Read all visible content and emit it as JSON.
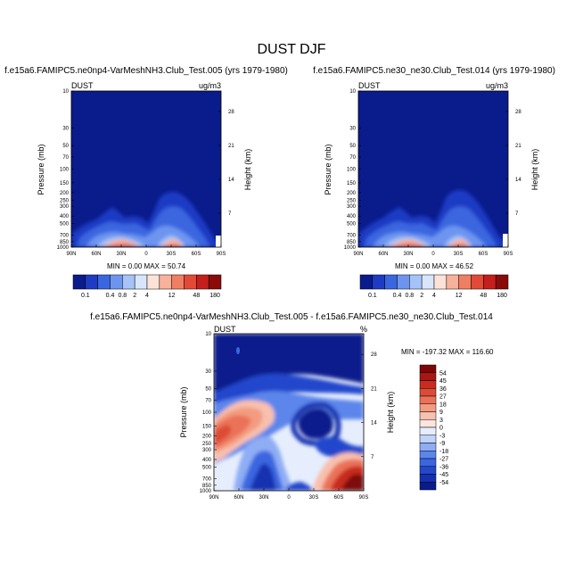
{
  "title": "DUST DJF",
  "colors": {
    "abs_scale": [
      "#0a1b8c",
      "#1f3bc4",
      "#3a66e0",
      "#6d95f0",
      "#a6c3f8",
      "#d8e6fc",
      "#fde3d7",
      "#f8b19a",
      "#f07e62",
      "#e24a36",
      "#c41f1c",
      "#8b0a0a"
    ],
    "diff_scale": [
      "#0a1b8c",
      "#1530b0",
      "#2447cc",
      "#3a66e0",
      "#5b86ec",
      "#8fadf4",
      "#c0d3fa",
      "#e6eefd",
      "#fbe5de",
      "#f8c0ae",
      "#f39b80",
      "#ea7258",
      "#dc4b36",
      "#c82c1f",
      "#a81712",
      "#7d0707"
    ]
  },
  "panels": [
    {
      "title": "f.e15a6.FAMIPC5.ne0np4-VarMeshNH3.Club_Test.005 (yrs 1979-1980)",
      "left_label": "DUST",
      "right_label": "ug/m3",
      "minmax": "MIN =   0.00  MAX =  50.74"
    },
    {
      "title": "f.e15a6.FAMIPC5.ne30_ne30.Club_Test.014 (yrs 1979-1980)",
      "left_label": "DUST",
      "right_label": "ug/m3",
      "minmax": "MIN =   0.00  MAX =  46.52"
    },
    {
      "title": "f.e15a6.FAMIPC5.ne0np4-VarMeshNH3.Club_Test.005 - f.e15a6.FAMIPC5.ne30_ne30.Club_Test.014",
      "left_label": "DUST",
      "right_label": "%",
      "minmax": "MIN = -197.32  MAX = 116.60"
    }
  ],
  "axes": {
    "ylabel": "Pressure (mb)",
    "ylabel_right": "Height (km)",
    "pressure_ticks": [
      "10",
      "30",
      "50",
      "70",
      "100",
      "150",
      "200",
      "250",
      "300",
      "400",
      "500",
      "700",
      "850",
      "1000"
    ],
    "height_ticks": [
      "28",
      "21",
      "14",
      "7"
    ],
    "lat_ticks": [
      "90N",
      "60N",
      "30N",
      "0",
      "30S",
      "60S",
      "90S"
    ]
  },
  "colorbar_abs": {
    "labels": [
      "0.1",
      "0.4",
      "0.8",
      "2",
      "4",
      "12",
      "48",
      "180"
    ]
  },
  "colorbar_diff": {
    "labels": [
      "54",
      "45",
      "36",
      "27",
      "18",
      "9",
      "3",
      "0",
      "-3",
      "-9",
      "-18",
      "-27",
      "-36",
      "-45",
      "-54"
    ]
  },
  "chart_data": [
    {
      "type": "heatmap",
      "title": "f.e15a6.FAMIPC5.ne0np4-VarMeshNH3.Club_Test.005 (yrs 1979-1980)",
      "variable": "DUST",
      "units": "ug/m3",
      "ylabel": "Pressure (mb)",
      "ylabel_right": "Height (km)",
      "x_ticks": [
        "90N",
        "60N",
        "30N",
        "0",
        "30S",
        "60S",
        "90S"
      ],
      "y_ticks": [
        10,
        30,
        50,
        70,
        100,
        150,
        200,
        250,
        300,
        400,
        500,
        700,
        850,
        1000
      ],
      "y_log": true,
      "y_reversed": true,
      "levels": [
        0.1,
        0.4,
        0.8,
        2,
        4,
        12,
        48,
        180
      ],
      "min": 0.0,
      "max": 50.74
    },
    {
      "type": "heatmap",
      "title": "f.e15a6.FAMIPC5.ne30_ne30.Club_Test.014 (yrs 1979-1980)",
      "variable": "DUST",
      "units": "ug/m3",
      "ylabel": "Pressure (mb)",
      "ylabel_right": "Height (km)",
      "x_ticks": [
        "90N",
        "60N",
        "30N",
        "0",
        "30S",
        "60S",
        "90S"
      ],
      "y_ticks": [
        10,
        30,
        50,
        70,
        100,
        150,
        200,
        250,
        300,
        400,
        500,
        700,
        850,
        1000
      ],
      "y_log": true,
      "y_reversed": true,
      "levels": [
        0.1,
        0.4,
        0.8,
        2,
        4,
        12,
        48,
        180
      ],
      "min": 0.0,
      "max": 46.52
    },
    {
      "type": "heatmap",
      "title": "f.e15a6.FAMIPC5.ne0np4-VarMeshNH3.Club_Test.005 - f.e15a6.FAMIPC5.ne30_ne30.Club_Test.014",
      "variable": "DUST",
      "units": "%",
      "ylabel": "Pressure (mb)",
      "ylabel_right": "Height (km)",
      "x_ticks": [
        "90N",
        "60N",
        "30N",
        "0",
        "30S",
        "60S",
        "90S"
      ],
      "y_ticks": [
        10,
        30,
        50,
        70,
        100,
        150,
        200,
        250,
        300,
        400,
        500,
        700,
        850,
        1000
      ],
      "y_log": true,
      "y_reversed": true,
      "levels": [
        -54,
        -45,
        -36,
        -27,
        -18,
        -9,
        -3,
        0,
        3,
        9,
        18,
        27,
        36,
        45,
        54
      ],
      "min": -197.32,
      "max": 116.6
    }
  ]
}
